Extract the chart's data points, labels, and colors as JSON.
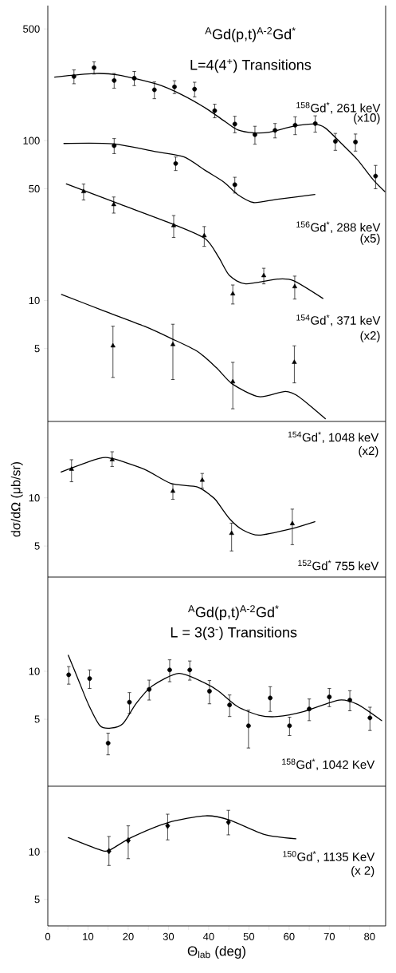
{
  "chart_data": [
    {
      "type": "scatter",
      "title": "$^{A}$Gd(p,t)$^{A-2}$Gd$^{*}$",
      "subtitle": "L=4(4$^{+}$) Transitions",
      "log": "y",
      "xlim": [
        0,
        84
      ],
      "ylim": [
        1.75,
        700
      ],
      "yticks": [
        5,
        10,
        50,
        100,
        500
      ],
      "tick_labels": "y",
      "series": [
        {
          "type": "scatter",
          "marker": "circle",
          "color": "#000000",
          "x": [
            6.5,
            11.5,
            16.5,
            21.5,
            26.5,
            31.5,
            36.5,
            41.5,
            46.5,
            51.5,
            56.5,
            61.5,
            66.5,
            71.5,
            76.5,
            81.5
          ],
          "values": [
            252,
            286,
            238,
            246,
            208,
            217,
            210,
            154,
            127,
            109,
            116,
            125,
            128,
            99,
            98,
            60
          ],
          "errors": [
            25,
            25,
            25,
            25,
            25,
            20,
            22,
            15,
            15,
            14,
            12,
            16,
            15,
            12,
            12,
            10
          ]
        },
        {
          "type": "line",
          "marker": "none",
          "color": "#000000",
          "x": [
            1.7,
            11.4,
            17.4,
            27.3,
            33.3,
            39.2,
            44.2,
            47.2,
            51.2,
            55.1,
            61.1,
            66.1,
            69,
            73,
            77,
            80.9,
            83.8
          ],
          "values": [
            250,
            263,
            258,
            225,
            194,
            160,
            131,
            117,
            112,
            113,
            123,
            127,
            120,
            96,
            76,
            57,
            48
          ]
        },
        {
          "type": "scatter",
          "marker": "circle",
          "color": "#000000",
          "x": [
            16.5,
            31.8,
            46.5
          ],
          "values": [
            93,
            72,
            53
          ],
          "errors": [
            10,
            7,
            6
          ]
        },
        {
          "type": "line",
          "marker": "none",
          "color": "#000000",
          "x": [
            4,
            16,
            27.3,
            33.9,
            39.2,
            43.8,
            47.2,
            51.2,
            57.1,
            66.4
          ],
          "values": [
            96,
            95.5,
            85,
            79,
            65,
            55,
            46,
            41,
            43,
            46
          ]
        },
        {
          "type": "scatter",
          "marker": "triangle",
          "color": "#000000",
          "x": [
            8.9,
            16.4,
            31.3,
            38.9,
            46,
            53.7,
            61.4
          ],
          "values": [
            48,
            39.8,
            29.4,
            25.4,
            11,
            14.3,
            12.2
          ],
          "errors": [
            5.5,
            4.6,
            4.6,
            3.6,
            1.5,
            1.6,
            2
          ]
        },
        {
          "type": "line",
          "marker": "none",
          "color": "#000000",
          "x": [
            4.6,
            18,
            31.3,
            39.2,
            42.5,
            45.2,
            49.2,
            57.1,
            61.1,
            68.4
          ],
          "values": [
            53.6,
            40,
            29.9,
            24.3,
            18.6,
            14.3,
            12.7,
            13.6,
            13.3,
            10.3
          ]
        },
        {
          "type": "scatter",
          "marker": "triangle",
          "color": "#000000",
          "x": [
            16.2,
            31.1,
            46,
            61.3
          ],
          "values": [
            5.2,
            5.3,
            3.1,
            4.1
          ],
          "errors": [
            [
              3.3,
              6.9
            ],
            [
              3.2,
              7.1
            ],
            [
              2.1,
              4.1
            ],
            [
              3.05,
              5.2
            ]
          ]
        },
        {
          "type": "line",
          "marker": "none",
          "color": "#000000",
          "x": [
            3.4,
            14,
            24,
            30.6,
            37.2,
            41.9,
            45.9,
            52.5,
            59.1,
            62.4,
            69
          ],
          "values": [
            10.9,
            8.6,
            6.9,
            5.8,
            4.8,
            3.8,
            3.0,
            2.5,
            2.7,
            2.5,
            1.82
          ]
        }
      ],
      "annotations": [
        "$^{158}$Gd$^{*}$, 261 keV",
        "(x10)",
        "$^{156}$Gd$^{*}$, 288 keV",
        "(x5)",
        "$^{154}$Gd$^{*}$, 371 keV",
        "(x2)"
      ]
    },
    {
      "type": "scatter",
      "ylabel": "dσ/dΩ (μb/sr)",
      "log": "y",
      "xlim": [
        0,
        84
      ],
      "ylim": [
        3.2,
        30
      ],
      "yticks": [
        5,
        10
      ],
      "tick_labels": "y",
      "series": [
        {
          "type": "scatter",
          "marker": "triangle",
          "color": "#000000",
          "x": [
            5.9,
            16,
            31.1,
            38.4,
            45.7,
            60.8
          ],
          "values": [
            15.1,
            17.3,
            11,
            12.9,
            6,
            6.9
          ],
          "errors": [
            [
              12.6,
              17.3
            ],
            [
              15.7,
              19.4
            ],
            [
              9.8,
              12.2
            ],
            [
              11.5,
              14.2
            ],
            [
              4.66,
              6.95
            ],
            [
              5.1,
              8.5
            ]
          ]
        },
        {
          "type": "line",
          "marker": "none",
          "color": "#000000",
          "x": [
            3.3,
            12.7,
            16,
            24,
            30.6,
            37.2,
            40.6,
            41.9,
            45.2,
            48.5,
            52.5,
            60.4,
            66.4
          ],
          "values": [
            14.5,
            17.6,
            17.6,
            15.1,
            12.3,
            11.7,
            10.3,
            9.6,
            7.4,
            6.3,
            5.85,
            6.4,
            7.1
          ]
        }
      ],
      "annotations": [
        "$^{154}$Gd$^{*}$, 1048 keV",
        "(x2)",
        "$^{152}$Gd$^{*}$ 755 keV"
      ]
    },
    {
      "type": "scatter",
      "title": "$^{A}$Gd(p,t)$^{A-2}$Gd$^{*}$",
      "subtitle": "L = 3(3$^{-}$) Transitions",
      "log": "y",
      "xlim": [
        0,
        84
      ],
      "ylim": [
        1.9,
        39
      ],
      "yticks": [
        5,
        10
      ],
      "tick_labels": "y",
      "series": [
        {
          "type": "scatter",
          "marker": "circle",
          "color": "#000000",
          "x": [
            5.2,
            10.4,
            15,
            20.3,
            25.2,
            30.3,
            35.3,
            40.2,
            45.2,
            49.9,
            55.3,
            60.1,
            65,
            70,
            75.1,
            80.1
          ],
          "values": [
            9.5,
            9.0,
            3.54,
            6.4,
            7.7,
            10.2,
            10.2,
            7.5,
            6.15,
            4.55,
            6.8,
            4.55,
            5.8,
            6.9,
            6.6,
            5.1
          ],
          "errors": [
            1.2,
            1.2,
            0.55,
            0.95,
            1.1,
            1.6,
            1.4,
            1.25,
            0.95,
            [
              3.3,
              5.7
            ],
            1.2,
            0.6,
            0.9,
            0.9,
            0.95,
            0.85
          ]
        },
        {
          "type": "line",
          "marker": "none",
          "color": "#000000",
          "x": [
            5.1,
            7.4,
            10.1,
            13,
            15.7,
            18.7,
            22,
            26,
            32.6,
            39.2,
            42.5,
            47.2,
            52.5,
            57.1,
            63.7,
            72.4,
            77,
            83
          ],
          "values": [
            12.6,
            9.1,
            6.2,
            4.55,
            4.4,
            4.7,
            6.3,
            8.1,
            9.7,
            8.4,
            7.5,
            6.0,
            5.3,
            5.2,
            5.6,
            6.6,
            6.2,
            4.9
          ]
        }
      ],
      "annotations": [
        "$^{158}$Gd$^{*}$, 1042 KeV"
      ]
    },
    {
      "type": "scatter",
      "xlabel": "Θ$_{lab}$ (deg)",
      "log": "y",
      "xlim": [
        0,
        84
      ],
      "ylim": [
        3.4,
        26
      ],
      "yticks": [
        5,
        10
      ],
      "xticks": [
        0,
        {
          "value": 5,
          "label": null
        },
        10,
        {
          "value": 15,
          "label": null
        },
        20,
        {
          "value": 25,
          "label": null
        },
        30,
        {
          "value": 35,
          "label": null
        },
        40,
        {
          "value": 45,
          "label": null
        },
        50,
        {
          "value": 55,
          "label": null
        },
        60,
        {
          "value": 65,
          "label": null
        },
        70,
        {
          "value": 75,
          "label": null
        },
        80
      ],
      "series": [
        {
          "type": "scatter",
          "marker": "diamond",
          "color": "#000000",
          "x": [
            15.2,
            20,
            29.8,
            44.9
          ],
          "values": [
            10.1,
            11.8,
            14.6,
            15.4
          ],
          "errors": [
            [
              8.2,
              12.5
            ],
            [
              9.05,
              14.6
            ],
            [
              11.9,
              17.3
            ],
            [
              12.8,
              18.3
            ]
          ]
        },
        {
          "type": "line",
          "marker": "none",
          "color": "#000000",
          "x": [
            5.1,
            12.7,
            15.2,
            20.7,
            29.9,
            39.2,
            45.2,
            53.8,
            61.7
          ],
          "values": [
            12.3,
            10.35,
            10.2,
            12.3,
            15.3,
            16.9,
            15.9,
            12.9,
            12.1
          ]
        }
      ],
      "annotations": [
        "$^{150}$Gd$^{*}$, 1135 KeV",
        "(x 2)"
      ]
    }
  ]
}
